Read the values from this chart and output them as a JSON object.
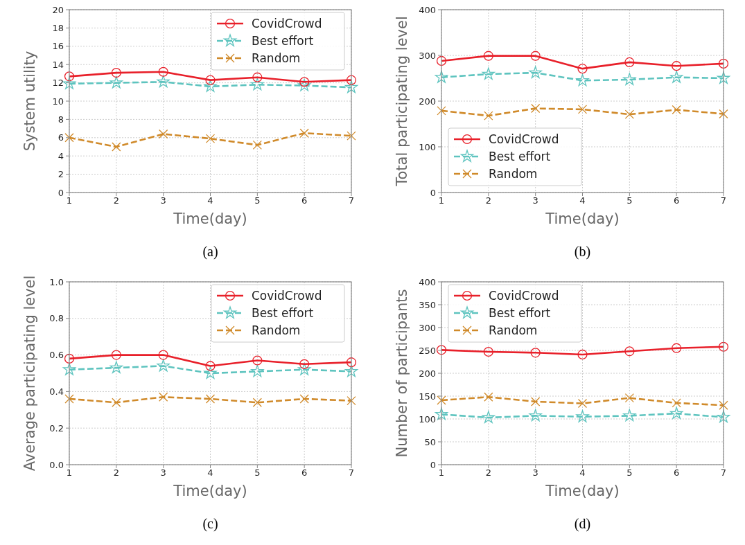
{
  "chart_data": [
    {
      "type": "line",
      "xlabel": "Time(day)",
      "ylabel": "System utility",
      "x": [
        1,
        2,
        3,
        4,
        5,
        6,
        7
      ],
      "xlim": [
        1,
        7
      ],
      "xticks": [
        1,
        2,
        3,
        4,
        5,
        6,
        7
      ],
      "ylim": [
        0,
        20
      ],
      "yticks": [
        0,
        2,
        4,
        6,
        8,
        10,
        12,
        14,
        16,
        18,
        20
      ],
      "grid": true,
      "legend": "top right",
      "annotations": [
        "(a)"
      ],
      "series": [
        {
          "name": "CovidCrowd",
          "color": "#e8202a",
          "marker": "circle",
          "line_style": "solid",
          "values": [
            12.7,
            13.1,
            13.2,
            12.3,
            12.6,
            12.1,
            12.3
          ]
        },
        {
          "name": "Best effort",
          "color": "#5ec4bf",
          "marker": "star",
          "line_style": "dashed",
          "values": [
            11.9,
            12.0,
            12.1,
            11.6,
            11.8,
            11.7,
            11.5
          ]
        },
        {
          "name": "Random",
          "color": "#d08a2a",
          "marker": "cross",
          "line_style": "dashed",
          "values": [
            6.0,
            5.0,
            6.4,
            5.9,
            5.2,
            6.5,
            6.2
          ]
        }
      ]
    },
    {
      "type": "line",
      "xlabel": "Time(day)",
      "ylabel": "Total participating level",
      "x": [
        1,
        2,
        3,
        4,
        5,
        6,
        7
      ],
      "xlim": [
        1,
        7
      ],
      "xticks": [
        1,
        2,
        3,
        4,
        5,
        6,
        7
      ],
      "ylim": [
        0,
        400
      ],
      "yticks": [
        0,
        100,
        200,
        300,
        400
      ],
      "grid": true,
      "legend": "bottom left",
      "annotations": [
        "(b)"
      ],
      "series": [
        {
          "name": "CovidCrowd",
          "color": "#e8202a",
          "marker": "circle",
          "line_style": "solid",
          "values": [
            288,
            299,
            299,
            271,
            285,
            277,
            282
          ]
        },
        {
          "name": "Best effort",
          "color": "#5ec4bf",
          "marker": "star",
          "line_style": "dashed",
          "values": [
            252,
            259,
            262,
            245,
            247,
            252,
            250
          ]
        },
        {
          "name": "Random",
          "color": "#d08a2a",
          "marker": "cross",
          "line_style": "dashed",
          "values": [
            179,
            168,
            184,
            182,
            171,
            181,
            172
          ]
        }
      ]
    },
    {
      "type": "line",
      "xlabel": "Time(day)",
      "ylabel": "Average participating level",
      "x": [
        1,
        2,
        3,
        4,
        5,
        6,
        7
      ],
      "xlim": [
        1,
        7
      ],
      "xticks": [
        1,
        2,
        3,
        4,
        5,
        6,
        7
      ],
      "ylim": [
        0,
        1
      ],
      "yticks": [
        {
          "value": 0,
          "label": "0.0"
        },
        0.2,
        0.4,
        0.6,
        0.8,
        {
          "value": 1,
          "label": "1.0"
        }
      ],
      "grid": true,
      "legend": "top right",
      "annotations": [
        "(c)"
      ],
      "series": [
        {
          "name": "CovidCrowd",
          "color": "#e8202a",
          "marker": "circle",
          "line_style": "solid",
          "values": [
            0.58,
            0.6,
            0.6,
            0.54,
            0.57,
            0.55,
            0.56
          ]
        },
        {
          "name": "Best effort",
          "color": "#5ec4bf",
          "marker": "star",
          "line_style": "dashed",
          "values": [
            0.52,
            0.53,
            0.54,
            0.5,
            0.51,
            0.52,
            0.51
          ]
        },
        {
          "name": "Random",
          "color": "#d08a2a",
          "marker": "cross",
          "line_style": "dashed",
          "values": [
            0.36,
            0.34,
            0.37,
            0.36,
            0.34,
            0.36,
            0.35
          ]
        }
      ]
    },
    {
      "type": "line",
      "xlabel": "Time(day)",
      "ylabel": "Number of participants",
      "x": [
        1,
        2,
        3,
        4,
        5,
        6,
        7
      ],
      "xlim": [
        1,
        7
      ],
      "xticks": [
        1,
        2,
        3,
        4,
        5,
        6,
        7
      ],
      "ylim": [
        0,
        400
      ],
      "yticks": [
        0,
        50,
        100,
        150,
        200,
        250,
        300,
        350,
        400
      ],
      "grid": true,
      "legend": "top left",
      "annotations": [
        "(d)"
      ],
      "series": [
        {
          "name": "CovidCrowd",
          "color": "#e8202a",
          "marker": "circle",
          "line_style": "solid",
          "values": [
            251,
            247,
            245,
            241,
            248,
            255,
            258
          ]
        },
        {
          "name": "Best effort",
          "color": "#5ec4bf",
          "marker": "star",
          "line_style": "dashed",
          "values": [
            110,
            103,
            107,
            105,
            107,
            112,
            104
          ]
        },
        {
          "name": "Random",
          "color": "#d08a2a",
          "marker": "cross",
          "line_style": "dashed",
          "values": [
            141,
            148,
            138,
            134,
            146,
            135,
            130
          ]
        }
      ]
    }
  ]
}
